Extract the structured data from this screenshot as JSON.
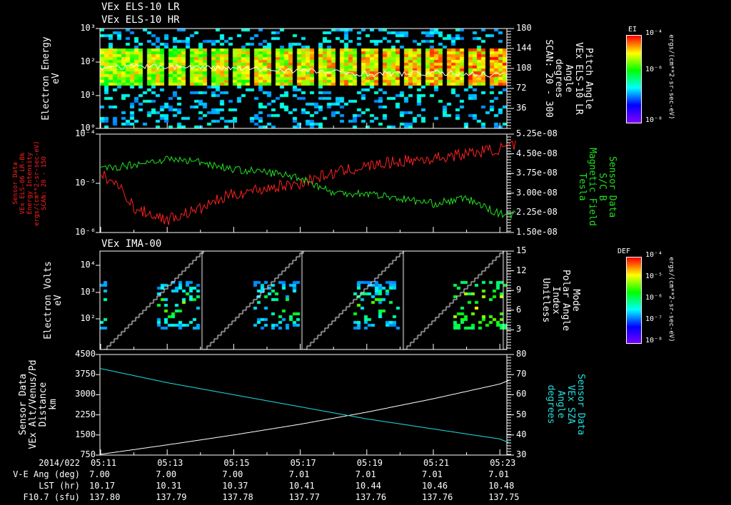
{
  "titles": [
    "VEx ELS-10 LR",
    "VEx ELS-10 HR"
  ],
  "panel3_title": "VEx IMA-00",
  "colors": {
    "red": "#ff2020",
    "green": "#20e020",
    "cyan": "#20e0e0",
    "white": "#ffffff"
  },
  "chart_data": [
    {
      "type": "heatmap",
      "name": "ELS energy spectrogram",
      "ylabel": "Electron Energy\neV",
      "yticks": [
        "10^3",
        "10^2",
        "10^1",
        "10^0"
      ],
      "ylim": [
        1,
        1000
      ],
      "yscale": "log",
      "right_label": "Pitch Angle\nVEx ELS-10 LR\nAngle\ndegrees\nSCAN: 20 - 300",
      "right_ticks": [
        "180",
        "144",
        "108",
        "72",
        "36"
      ],
      "ylim_right": [
        0,
        180
      ],
      "colorbar": {
        "title": "EI",
        "ticks": [
          "10^-4",
          "10^-6",
          "10^-8"
        ],
        "units": "ergs/(cm**2-sr-sec-eV)"
      },
      "pitch_angle_line": {
        "x": [
          "05:11",
          "05:13",
          "05:15",
          "05:17",
          "05:19",
          "05:21",
          "05:23"
        ],
        "y": [
          110,
          112,
          108,
          104,
          98,
          100,
          96
        ]
      }
    },
    {
      "type": "line",
      "name": "Energy intensity and magnetic field",
      "ylabel": "Sensor Data\nVEx ELS-06 LR-Bk\nEnergy Intensity\nergs/(cm**2-sr-sec-eV)\nSCAN: 20 - 150",
      "yticks": [
        "10^-4",
        "10^-5",
        "10^-6"
      ],
      "ylim": [
        1e-06,
        0.0001
      ],
      "yscale": "log",
      "right_label": "Sensor Data\nS/C B\nMagnetic Field\nTesla",
      "right_ticks": [
        "5.25e-08",
        "4.50e-08",
        "3.75e-08",
        "3.00e-08",
        "2.25e-08",
        "1.50e-08"
      ],
      "ylim_right": [
        1.5e-08,
        5.25e-08
      ],
      "x": [
        "05:11",
        "05:12",
        "05:13",
        "05:14",
        "05:15",
        "05:16",
        "05:17",
        "05:18",
        "05:19",
        "05:20",
        "05:21",
        "05:22",
        "05:23",
        "05:23.5"
      ],
      "series": [
        {
          "name": "Energy Intensity",
          "color": "#ff2020",
          "axis": "left",
          "values": [
            1.5e-05,
            3e-06,
            1.8e-06,
            3e-06,
            6e-06,
            8e-06,
            1e-05,
            1.6e-05,
            2.2e-05,
            2.8e-05,
            3.2e-05,
            4e-05,
            5e-05,
            6e-05
          ]
        },
        {
          "name": "Magnetic Field",
          "color": "#20e020",
          "axis": "right",
          "values": [
            3.9e-08,
            4.1e-08,
            4.3e-08,
            4.2e-08,
            3.9e-08,
            3.8e-08,
            3.6e-08,
            3e-08,
            3e-08,
            2.8e-08,
            2.6e-08,
            2.8e-08,
            2.2e-08,
            2.2e-08
          ]
        }
      ]
    },
    {
      "type": "heatmap",
      "name": "IMA ion spectrogram",
      "ylabel": "Electron Volts\neV",
      "yticks": [
        "10^4",
        "10^3",
        "10^2"
      ],
      "yscale": "log",
      "right_label": "Mode\nPolar Angle\nIndex\nUnitless",
      "right_ticks": [
        "15",
        "12",
        "9",
        "6",
        "3"
      ],
      "ylim_right": [
        0,
        15
      ],
      "colorbar": {
        "title": "DEF",
        "ticks": [
          "10^-4",
          "10^-5",
          "10^-6",
          "10^-7",
          "10^-8"
        ],
        "units": "ergs/(cm**2-sr-sec-eV)"
      }
    },
    {
      "type": "line",
      "name": "Altitude and SZA",
      "ylabel": "Sensor Data\nVEx Alt/Venus/Pd\nDistance\nkm",
      "yticks": [
        "4500",
        "3750",
        "3000",
        "2250",
        "1500",
        "750"
      ],
      "ylim": [
        750,
        4500
      ],
      "right_label": "Sensor Data\nVEx SZA\nAngle\ndegrees",
      "right_ticks": [
        "80",
        "70",
        "60",
        "50",
        "40",
        "30"
      ],
      "ylim_right": [
        30,
        80
      ],
      "x": [
        "05:11",
        "05:13",
        "05:15",
        "05:17",
        "05:19",
        "05:21",
        "05:23",
        "05:23.3"
      ],
      "series": [
        {
          "name": "Altitude",
          "color": "#ffffff",
          "axis": "left",
          "values": [
            780,
            1130,
            1500,
            1900,
            2350,
            2850,
            3400,
            3550
          ]
        },
        {
          "name": "SZA",
          "color": "#20e0e0",
          "axis": "right",
          "values": [
            73,
            66,
            60,
            54,
            48,
            43,
            38,
            36
          ]
        }
      ]
    }
  ],
  "xaxis": {
    "date": "2014/022",
    "ticks": [
      "05:11",
      "05:13",
      "05:15",
      "05:17",
      "05:19",
      "05:21",
      "05:23"
    ]
  },
  "ephemeris": [
    {
      "label": "V-E Ang (deg)",
      "values": [
        "7.00",
        "7.00",
        "7.00",
        "7.01",
        "7.01",
        "7.01",
        "7.01"
      ]
    },
    {
      "label": "LST (hr)",
      "values": [
        "10.17",
        "10.31",
        "10.37",
        "10.41",
        "10.44",
        "10.46",
        "10.48"
      ]
    },
    {
      "label": "F10.7 (sfu)",
      "values": [
        "137.80",
        "137.79",
        "137.78",
        "137.77",
        "137.76",
        "137.76",
        "137.75"
      ]
    }
  ]
}
